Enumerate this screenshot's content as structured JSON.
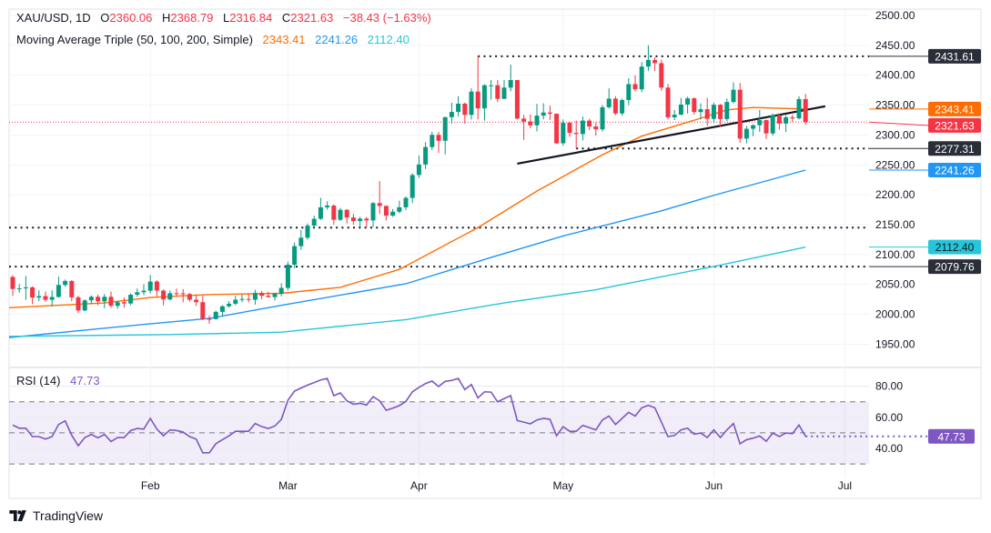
{
  "header": {
    "symbol": "XAU/USD, 1D",
    "open_label": "O",
    "open": "2360.06",
    "high_label": "H",
    "high": "2368.79",
    "low_label": "L",
    "low": "2316.84",
    "close_label": "C",
    "close": "2321.63",
    "change": "−38.43 (−1.63%)",
    "ma_title": "Moving Average Triple (50, 100, 200, Simple)",
    "ma50": "2343.41",
    "ma100": "2241.26",
    "ma200": "2112.40"
  },
  "rsi_legend": {
    "title": "RSI (14)",
    "value": "47.73"
  },
  "branding": {
    "name": "TradingView"
  },
  "colors": {
    "up": "#089981",
    "down": "#F23645",
    "ma50": "#FF6D00",
    "ma100": "#2196F3",
    "ma200": "#26C6DA",
    "rsi": "#7E57C2",
    "trendline": "#131722"
  },
  "chart_data": {
    "type": "candlestick",
    "title": "XAU/USD, 1D",
    "ylim": [
      1925,
      2510
    ],
    "grid": true,
    "dates": [
      "2024-01-03",
      "2024-01-04",
      "2024-01-05",
      "2024-01-08",
      "2024-01-09",
      "2024-01-10",
      "2024-01-11",
      "2024-01-12",
      "2024-01-15",
      "2024-01-16",
      "2024-01-17",
      "2024-01-18",
      "2024-01-19",
      "2024-01-22",
      "2024-01-23",
      "2024-01-24",
      "2024-01-25",
      "2024-01-26",
      "2024-01-29",
      "2024-01-30",
      "2024-01-31",
      "2024-02-01",
      "2024-02-02",
      "2024-02-05",
      "2024-02-06",
      "2024-02-07",
      "2024-02-08",
      "2024-02-09",
      "2024-02-12",
      "2024-02-13",
      "2024-02-14",
      "2024-02-15",
      "2024-02-16",
      "2024-02-19",
      "2024-02-20",
      "2024-02-21",
      "2024-02-22",
      "2024-02-23",
      "2024-02-26",
      "2024-02-27",
      "2024-02-28",
      "2024-02-29",
      "2024-03-01",
      "2024-03-04",
      "2024-03-05",
      "2024-03-06",
      "2024-03-07",
      "2024-03-08",
      "2024-03-11",
      "2024-03-12",
      "2024-03-13",
      "2024-03-14",
      "2024-03-15",
      "2024-03-18",
      "2024-03-19",
      "2024-03-20",
      "2024-03-21",
      "2024-03-22",
      "2024-03-25",
      "2024-03-26",
      "2024-03-27",
      "2024-03-28",
      "2024-04-01",
      "2024-04-02",
      "2024-04-03",
      "2024-04-04",
      "2024-04-05",
      "2024-04-08",
      "2024-04-09",
      "2024-04-10",
      "2024-04-11",
      "2024-04-12",
      "2024-04-15",
      "2024-04-16",
      "2024-04-17",
      "2024-04-18",
      "2024-04-19",
      "2024-04-22",
      "2024-04-23",
      "2024-04-24",
      "2024-04-25",
      "2024-04-26",
      "2024-04-29",
      "2024-04-30",
      "2024-05-01",
      "2024-05-02",
      "2024-05-03",
      "2024-05-06",
      "2024-05-07",
      "2024-05-08",
      "2024-05-09",
      "2024-05-10",
      "2024-05-13",
      "2024-05-14",
      "2024-05-15",
      "2024-05-16",
      "2024-05-17",
      "2024-05-20",
      "2024-05-21",
      "2024-05-22",
      "2024-05-23",
      "2024-05-24",
      "2024-05-27",
      "2024-05-28",
      "2024-05-29",
      "2024-05-30",
      "2024-05-31",
      "2024-06-03",
      "2024-06-04",
      "2024-06-05",
      "2024-06-06",
      "2024-06-07",
      "2024-06-10",
      "2024-06-11",
      "2024-06-12",
      "2024-06-13",
      "2024-06-14",
      "2024-06-17",
      "2024-06-18",
      "2024-06-19",
      "2024-06-20",
      "2024-06-21"
    ],
    "open": [
      2062.4,
      2042.3,
      2043.3,
      2045.0,
      2027.9,
      2030.4,
      2024.2,
      2028.9,
      2049.0,
      2055.7,
      2028.3,
      2006.3,
      2023.2,
      2029.2,
      2021.6,
      2029.2,
      2014.1,
      2020.1,
      2018.0,
      2032.7,
      2036.8,
      2039.4,
      2054.7,
      2039.6,
      2024.8,
      2035.2,
      2035.0,
      2033.8,
      2024.4,
      2020.2,
      1992.4,
      1991.9,
      2004.0,
      2013.4,
      2017.6,
      2024.3,
      2025.6,
      2024.3,
      2035.7,
      2030.9,
      2028.7,
      2034.2,
      2044.1,
      2082.9,
      2114.0,
      2128.1,
      2148.3,
      2159.7,
      2178.9,
      2181.9,
      2158.1,
      2174.7,
      2161.9,
      2155.9,
      2160.0,
      2157.0,
      2186.0,
      2181.3,
      2165.0,
      2171.6,
      2179.0,
      2194.7,
      2233.0,
      2250.6,
      2279.8,
      2300.2,
      2290.3,
      2329.8,
      2338.6,
      2352.4,
      2333.6,
      2372.6,
      2344.5,
      2383.2,
      2383.2,
      2360.4,
      2379.3,
      2391.9,
      2327.4,
      2322.5,
      2316.2,
      2332.4,
      2337.6,
      2335.5,
      2286.1,
      2320.4,
      2303.6,
      2301.7,
      2324.0,
      2314.2,
      2309.4,
      2346.4,
      2360.8,
      2336.0,
      2358.5,
      2385.1,
      2376.4,
      2414.4,
      2425.6,
      2420.2,
      2379.3,
      2329.6,
      2333.9,
      2350.9,
      2361.3,
      2338.4,
      2343.1,
      2326.9,
      2350.6,
      2326.6,
      2355.2,
      2375.7,
      2294.0,
      2310.4,
      2316.3,
      2324.8,
      2302.6,
      2333.4,
      2319.1,
      2329.6,
      2327.8,
      2360.06
    ],
    "high": [
      2065.5,
      2050.5,
      2064.2,
      2046.8,
      2040.0,
      2038.0,
      2040.0,
      2062.9,
      2058.0,
      2057.0,
      2031.0,
      2025.0,
      2031.5,
      2033.0,
      2034.0,
      2038.0,
      2023.0,
      2028.0,
      2035.0,
      2043.0,
      2050.0,
      2065.5,
      2057.0,
      2041.5,
      2040.0,
      2043.0,
      2042.0,
      2036.0,
      2033.0,
      2031.0,
      1998.0,
      2006.0,
      2015.0,
      2022.0,
      2031.0,
      2033.0,
      2035.0,
      2041.0,
      2039.0,
      2038.0,
      2036.0,
      2052.0,
      2088.0,
      2120.0,
      2141.0,
      2152.0,
      2165.0,
      2195.0,
      2189.0,
      2184.0,
      2178.0,
      2176.0,
      2168.0,
      2163.0,
      2163.0,
      2188.0,
      2222.8,
      2182.0,
      2176.0,
      2190.0,
      2197.0,
      2236.0,
      2265.5,
      2288.0,
      2305.0,
      2304.9,
      2330.5,
      2354.0,
      2365.0,
      2354.0,
      2378.0,
      2431.6,
      2385.0,
      2392.0,
      2392.0,
      2392.0,
      2417.8,
      2392.0,
      2333.5,
      2334.0,
      2352.0,
      2353.0,
      2349.0,
      2336.0,
      2326.0,
      2322.0,
      2324.0,
      2331.0,
      2327.0,
      2321.0,
      2350.0,
      2378.0,
      2365.0,
      2361.0,
      2395.0,
      2400.0,
      2422.0,
      2450.0,
      2430.0,
      2426.0,
      2385.0,
      2342.0,
      2362.0,
      2364.0,
      2363.0,
      2353.0,
      2362.0,
      2354.0,
      2352.0,
      2361.0,
      2388.0,
      2387.0,
      2315.0,
      2318.0,
      2342.0,
      2326.0,
      2336.0,
      2334.0,
      2333.0,
      2334.0,
      2365.0,
      2368.79
    ],
    "low": [
      2030.7,
      2036.0,
      2024.0,
      2016.8,
      2022.0,
      2021.0,
      2013.3,
      2028.0,
      2046.0,
      2021.7,
      2001.9,
      2005.0,
      2017.0,
      2015.0,
      2010.0,
      2011.0,
      2009.0,
      2011.0,
      2015.0,
      2029.0,
      2032.0,
      2035.0,
      2030.0,
      2014.9,
      2023.0,
      2030.0,
      2020.0,
      2021.0,
      2014.0,
      1990.0,
      1984.3,
      1991.0,
      1997.0,
      2011.0,
      2015.0,
      2020.0,
      2020.0,
      2016.0,
      2025.0,
      2028.0,
      2023.0,
      2030.0,
      2040.0,
      2077.0,
      2108.0,
      2125.0,
      2145.0,
      2158.0,
      2175.0,
      2150.0,
      2156.0,
      2152.0,
      2150.0,
      2146.0,
      2146.0,
      2146.0,
      2168.0,
      2157.0,
      2163.0,
      2169.0,
      2174.0,
      2186.0,
      2228.0,
      2243.0,
      2275.0,
      2270.0,
      2267.5,
      2319.0,
      2331.0,
      2319.0,
      2326.0,
      2326.0,
      2324.0,
      2359.0,
      2355.0,
      2360.0,
      2373.0,
      2326.0,
      2291.7,
      2311.0,
      2306.0,
      2326.0,
      2325.0,
      2285.0,
      2282.0,
      2297.0,
      2277.3,
      2291.0,
      2308.0,
      2299.0,
      2306.0,
      2344.0,
      2333.0,
      2332.0,
      2350.0,
      2373.0,
      2372.0,
      2407.0,
      2407.0,
      2374.0,
      2325.9,
      2325.0,
      2333.0,
      2336.0,
      2334.0,
      2326.0,
      2315.0,
      2320.0,
      2314.0,
      2323.0,
      2353.0,
      2286.9,
      2286.0,
      2298.0,
      2305.0,
      2293.0,
      2299.0,
      2309.0,
      2305.0,
      2322.0,
      2326.0,
      2316.84
    ],
    "close": [
      2042.3,
      2043.3,
      2045.0,
      2027.9,
      2030.4,
      2024.2,
      2028.9,
      2049.0,
      2055.7,
      2028.3,
      2006.3,
      2023.2,
      2029.2,
      2021.6,
      2029.2,
      2014.1,
      2020.1,
      2018.0,
      2032.7,
      2036.8,
      2039.4,
      2054.7,
      2039.6,
      2024.8,
      2035.2,
      2035.0,
      2033.8,
      2024.4,
      2020.2,
      1992.4,
      1991.9,
      2004.0,
      2013.4,
      2017.6,
      2024.3,
      2025.6,
      2024.3,
      2035.7,
      2030.9,
      2028.7,
      2034.2,
      2044.1,
      2082.9,
      2114.0,
      2128.1,
      2148.3,
      2159.7,
      2178.9,
      2181.9,
      2158.1,
      2174.7,
      2161.9,
      2155.9,
      2160.0,
      2157.0,
      2186.0,
      2181.3,
      2165.0,
      2171.6,
      2179.0,
      2194.7,
      2233.0,
      2250.6,
      2279.8,
      2300.2,
      2290.3,
      2329.8,
      2338.6,
      2352.4,
      2333.6,
      2372.6,
      2344.5,
      2383.2,
      2383.2,
      2360.4,
      2379.3,
      2391.9,
      2327.4,
      2322.5,
      2316.2,
      2332.4,
      2337.6,
      2335.5,
      2286.1,
      2320.4,
      2303.6,
      2301.7,
      2324.0,
      2314.2,
      2309.4,
      2346.4,
      2360.8,
      2336.0,
      2358.5,
      2385.1,
      2376.4,
      2414.4,
      2425.6,
      2420.2,
      2379.3,
      2329.6,
      2333.9,
      2350.9,
      2361.3,
      2338.4,
      2343.1,
      2326.9,
      2350.6,
      2326.6,
      2355.2,
      2375.7,
      2294.0,
      2310.4,
      2316.3,
      2324.8,
      2302.6,
      2333.4,
      2319.1,
      2329.6,
      2327.8,
      2360.1,
      2321.63
    ],
    "moving_averages": [
      {
        "name": "50",
        "color": "#FF6D00",
        "points": [
          [
            "2024-01-03",
            2011
          ],
          [
            "2024-01-23",
            2019
          ],
          [
            "2024-02-01",
            2028
          ],
          [
            "2024-02-14",
            2033
          ],
          [
            "2024-02-29",
            2035
          ],
          [
            "2024-03-13",
            2045
          ],
          [
            "2024-03-26",
            2075
          ],
          [
            "2024-04-12",
            2145
          ],
          [
            "2024-04-25",
            2206
          ],
          [
            "2024-05-09",
            2267
          ],
          [
            "2024-05-17",
            2298
          ],
          [
            "2024-05-30",
            2328
          ],
          [
            "2024-06-05",
            2342
          ],
          [
            "2024-06-11",
            2346
          ],
          [
            "2024-06-21",
            2343.41
          ]
        ]
      },
      {
        "name": "100",
        "color": "#2196F3",
        "points": [
          [
            "2024-01-03",
            1961
          ],
          [
            "2024-01-31",
            1983
          ],
          [
            "2024-02-14",
            1993
          ],
          [
            "2024-02-29",
            2015
          ],
          [
            "2024-03-27",
            2051
          ],
          [
            "2024-04-16",
            2095
          ],
          [
            "2024-05-01",
            2131
          ],
          [
            "2024-05-22",
            2173
          ],
          [
            "2024-06-03",
            2199
          ],
          [
            "2024-06-21",
            2241.26
          ]
        ]
      },
      {
        "name": "200",
        "color": "#26C6DA",
        "points": [
          [
            "2024-01-03",
            1963
          ],
          [
            "2024-02-06",
            1966
          ],
          [
            "2024-02-29",
            1970
          ],
          [
            "2024-03-27",
            1991
          ],
          [
            "2024-04-18",
            2019
          ],
          [
            "2024-05-08",
            2041
          ],
          [
            "2024-06-03",
            2080
          ],
          [
            "2024-06-21",
            2112.4
          ]
        ]
      }
    ],
    "horizontal_levels": [
      {
        "value": 2431.61,
        "from": "2024-04-12",
        "label": "2431.61"
      },
      {
        "value": 2277.31,
        "from": "2024-05-03",
        "label": "2277.31"
      },
      {
        "value": 2145,
        "from": "2024-01-03",
        "label": ""
      },
      {
        "value": 2079.76,
        "from": "2024-01-03",
        "label": "2079.76"
      }
    ],
    "trendline": {
      "from": [
        "2024-04-22",
        2252
      ],
      "to": [
        "2024-06-26",
        2348
      ]
    },
    "last_price": 2321.63,
    "y_ticks": [
      "2500.00",
      "2450.00",
      "2400.00",
      "2350.00",
      "2300.00",
      "2250.00",
      "2200.00",
      "2150.00",
      "2100.00",
      "2050.00",
      "2000.00",
      "1950.00"
    ],
    "x_ticks": [
      {
        "label": "Feb",
        "date": "2024-02-01"
      },
      {
        "label": "Mar",
        "date": "2024-03-01"
      },
      {
        "label": "Apr",
        "date": "2024-04-01"
      },
      {
        "label": "May",
        "date": "2024-05-01"
      },
      {
        "label": "Jun",
        "date": "2024-06-03"
      },
      {
        "label": "Jul",
        "date": "2024-07-01"
      }
    ],
    "price_labels": [
      {
        "text": "2431.61",
        "bg": "#2A2E39",
        "fg": "#FFFFFF",
        "value": 2431.61
      },
      {
        "text": "2343.41",
        "bg": "#FF6D00",
        "fg": "#FFFFFF",
        "value": 2343.41
      },
      {
        "text": "2321.63",
        "bg": "#F23645",
        "fg": "#FFFFFF",
        "value": 2321.63
      },
      {
        "text": "2277.31",
        "bg": "#2A2E39",
        "fg": "#FFFFFF",
        "value": 2277.31
      },
      {
        "text": "2241.26",
        "bg": "#2196F3",
        "fg": "#FFFFFF",
        "value": 2241.26
      },
      {
        "text": "2112.40",
        "bg": "#26C6DA",
        "fg": "#131722",
        "value": 2112.4
      },
      {
        "text": "2079.76",
        "bg": "#2A2E39",
        "fg": "#FFFFFF",
        "value": 2079.76
      }
    ],
    "rsi": {
      "period": 14,
      "upper": 70,
      "middle": 50,
      "lower": 30,
      "y_ticks": [
        "80.00",
        "60.00",
        "40.00"
      ],
      "last_label": "47.73",
      "values": [
        55,
        53,
        53,
        47.6,
        47.6,
        46,
        47.6,
        55.4,
        57.7,
        48.5,
        41.7,
        47,
        49,
        46.8,
        49,
        44.4,
        47,
        47,
        51.5,
        52.8,
        52.4,
        59.3,
        52.4,
        48.1,
        51.9,
        51.5,
        50.5,
        47.6,
        46,
        37.2,
        37.2,
        43,
        45.6,
        48.1,
        51,
        51,
        51,
        56,
        54,
        52.8,
        54.4,
        58.7,
        71,
        76.8,
        78.8,
        80.7,
        82.3,
        84,
        85,
        73.9,
        75.7,
        70.6,
        68.4,
        69,
        67.9,
        73.3,
        70.6,
        64.5,
        65.9,
        67.5,
        70.2,
        76.4,
        79.2,
        81.7,
        83.3,
        79.8,
        83.1,
        83.7,
        85,
        77.8,
        81.1,
        72.5,
        76.4,
        76.2,
        70,
        72,
        73.9,
        57.9,
        56.9,
        55.8,
        58.3,
        59.3,
        58.7,
        48.1,
        54,
        51,
        51,
        54.8,
        53.4,
        51.9,
        58.3,
        60.8,
        55.4,
        59.3,
        63.2,
        60.8,
        66.1,
        67.7,
        66.1,
        56.9,
        47.6,
        48.3,
        51.9,
        53,
        49.1,
        49.9,
        47,
        51.9,
        47,
        51.9,
        56,
        43,
        45.6,
        46.6,
        48,
        44.6,
        49.9,
        47.6,
        49.9,
        49.5,
        55,
        47.73
      ]
    }
  }
}
